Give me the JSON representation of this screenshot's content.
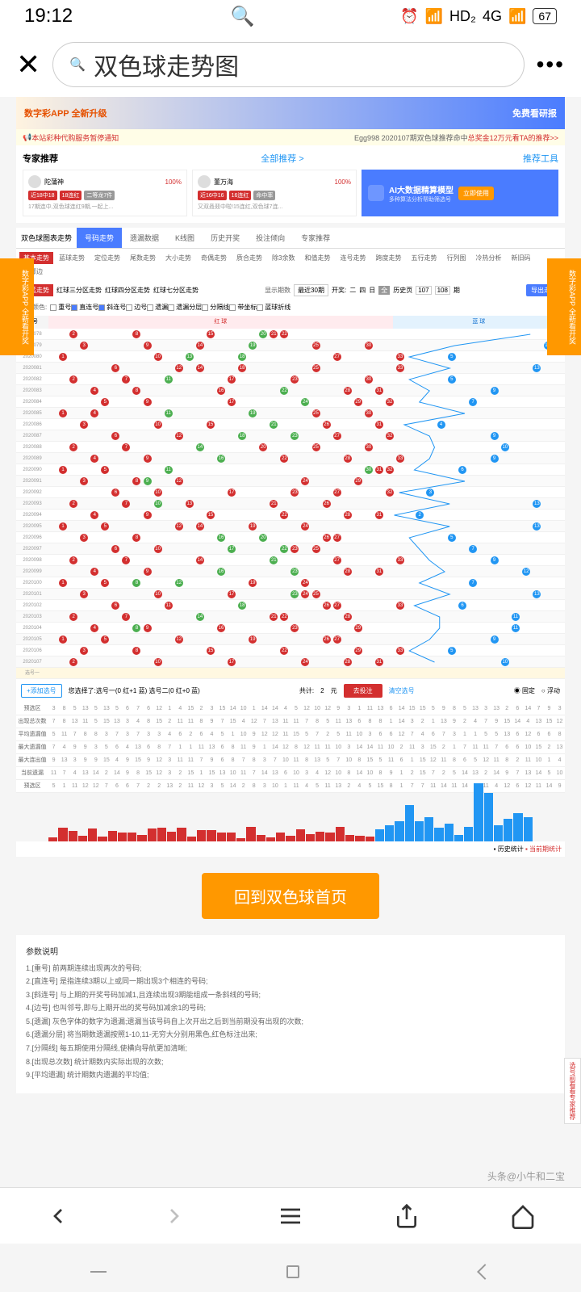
{
  "status": {
    "time": "19:12",
    "network": "HD₂",
    "signal": "4G",
    "battery": "67"
  },
  "search": {
    "placeholder": "双色球走势图"
  },
  "banner": {
    "left": "数字彩APP 全新升级",
    "right": "免费看研报"
  },
  "notice": {
    "left": "本站彩种代购服务暂停通知",
    "mid": "Egg998 2020107期双色球推荐命中",
    "prize": "总奖金12万元",
    "right": "看TA的推荐>>"
  },
  "expert": {
    "title": "专家推荐",
    "link": "全部推荐 >",
    "tools": "推荐工具",
    "cards": [
      {
        "name": "陀蒲神",
        "pct": "100%",
        "tag1": "近18中18",
        "tag2": "18连红",
        "tag3": "二等龙7件",
        "desc": "17期连中,双色球连红9期,一起上..."
      },
      {
        "name": "董万海",
        "pct": "100%",
        "tag1": "近16中16",
        "tag2": "16连红",
        "tag3": "命中率",
        "desc": "又双叒叕中啦!15连红,双色球7连..."
      }
    ],
    "ai": {
      "title": "AI大数据精算模型",
      "sub": "多种算法分析帮助筛选号",
      "btn": "立即使用"
    }
  },
  "sideAd": {
    "text": "数字彩APP 全新看开奖"
  },
  "nav": {
    "title": "双色球图表走势",
    "tabs": [
      "号码走势",
      "遗漏数据",
      "K线图",
      "历史开奖",
      "投注倾向",
      "专家推荐"
    ]
  },
  "subTabs": [
    "基本走势",
    "蓝球走势",
    "定位走势",
    "尾数走势",
    "大小走势",
    "奇偶走势",
    "质合走势",
    "除3余数",
    "和值走势",
    "连号走势",
    "跨度走势",
    "五行走势",
    "行列图",
    "冷热分析",
    "新旧码",
    "重邻边"
  ],
  "trend": {
    "tabs": [
      "红蓝走势",
      "红球三分区走势",
      "红球四分区走势",
      "红球七分区走势"
    ]
  },
  "filters": {
    "label": "标注颜色:",
    "opts": [
      "重号",
      "直连号",
      "斜连号",
      "边号",
      "遗漏",
      "遗漏分层",
      "分隔线",
      "带坐标",
      "蓝球折线"
    ],
    "period": "显示期数",
    "periodVal": "最近30期",
    "draw": "开奖:",
    "days": [
      "二",
      "四",
      "日",
      "全"
    ],
    "hist": "历史页",
    "h1": "107",
    "h2": "108",
    "h3": "期",
    "export": "导出走势"
  },
  "chart": {
    "periodLabel": "期号",
    "redLabel": "红 球",
    "blueLabel": "蓝 球",
    "periods": [
      "2020078",
      "2020079",
      "2020080",
      "2020081",
      "2020082",
      "2020083",
      "2020084",
      "2020085",
      "2020086",
      "2020087",
      "2020088",
      "2020089",
      "2020090",
      "2020091",
      "2020092",
      "2020093",
      "2020094",
      "2020095",
      "2020096",
      "2020097",
      "2020098",
      "2020099",
      "2020100",
      "2020101",
      "2020102",
      "2020103",
      "2020104",
      "2020105",
      "2020106",
      "2020107"
    ],
    "selectRows": [
      "选号一",
      "选号二"
    ]
  },
  "selection": {
    "add": "+添加选号",
    "text": "您选择了:选号一(0 红+1 蓝) 选号二(0 红+0 蓝)",
    "total": "共计:",
    "num": "2",
    "unit": "元",
    "bet": "去投注",
    "clear": "清空选号",
    "fixed": "固定",
    "float": "浮动"
  },
  "stats": {
    "labels": [
      "预选区",
      "出现总次数",
      "平均遗漏值",
      "最大遗漏值",
      "最大连出值",
      "当前遗漏",
      "预选区"
    ],
    "legend": [
      "历史统计",
      "当前期统计"
    ]
  },
  "backBtn": "回到双色球首页",
  "params": {
    "title": "参数说明",
    "items": [
      "1.[重号] 前两期连续出现两次的号码;",
      "2.[直连号] 是指连续3期以上或同一期出现3个相连的号码;",
      "3.[斜连号] 与上期的开奖号码加减1,且连续出现3期能组成一条斜线的号码;",
      "4.[边号] 也叫邻号,即与上期开出的奖号码加减余1的号码;",
      "5.[遗漏] 灰色字体的数字为遗漏;遗漏当该号码自上次开出之后到当前期没有出现的次数;",
      "6.[遗漏分层] 将当期数遗漏按照1-10,11-无穷大分别用黑色,红色标注出来;",
      "7.[分隔线] 每五期使用分隔线,使横向导航更加清晰;",
      "8.[出现总次数] 统计期数内实际出现的次数;",
      "9.[平均遗漏] 统计期数内遗漏的平均值;"
    ]
  },
  "attribution": "头条@小牛和二宝",
  "floatTag": "选号前看看专家推荐",
  "colors": {
    "red": "#d32f2f",
    "green": "#4caf50",
    "blue": "#2196f3",
    "orange": "#ff9800",
    "primary": "#4a7cff"
  }
}
